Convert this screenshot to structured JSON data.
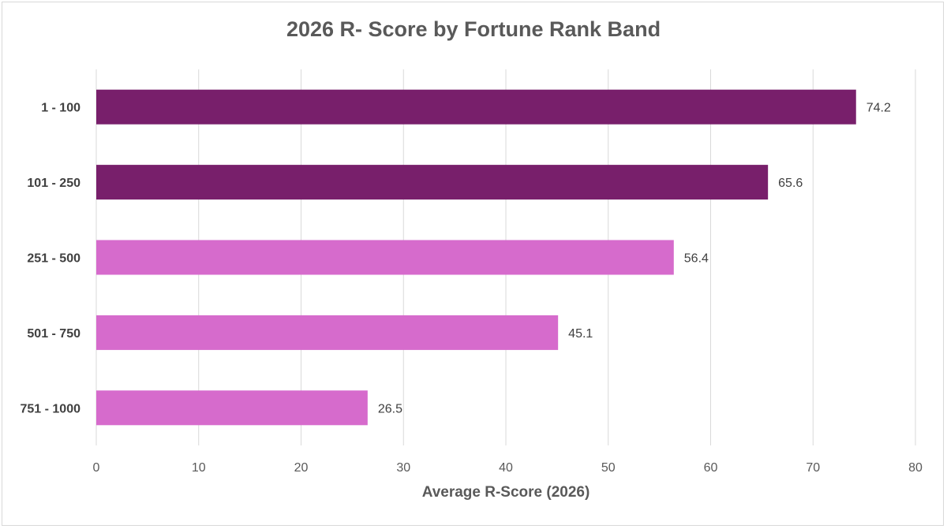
{
  "chart_data": {
    "type": "bar",
    "orientation": "horizontal",
    "title": "2026 R- Score by Fortune Rank Band",
    "xlabel": "Average R-Score (2026)",
    "ylabel": "",
    "categories": [
      "1 - 100",
      "101 - 250",
      "251 - 500",
      "501 - 750",
      "751 - 1000"
    ],
    "values": [
      74.2,
      65.6,
      56.4,
      45.1,
      26.5
    ],
    "data_labels": [
      "74.2",
      "65.6",
      "56.4",
      "45.1",
      "26.5"
    ],
    "bar_colors": [
      "#781f6b",
      "#781f6b",
      "#d66bcc",
      "#d66bcc",
      "#d66bcc"
    ],
    "xlim": [
      0,
      80
    ],
    "xticks": [
      0,
      10,
      20,
      30,
      40,
      50,
      60,
      70,
      80
    ],
    "xtick_labels": [
      "0",
      "10",
      "20",
      "30",
      "40",
      "50",
      "60",
      "70",
      "80"
    ],
    "grid": "vertical",
    "legend": "none"
  },
  "colors": {
    "gridline": "#d9d9d9",
    "text": "#595959"
  }
}
